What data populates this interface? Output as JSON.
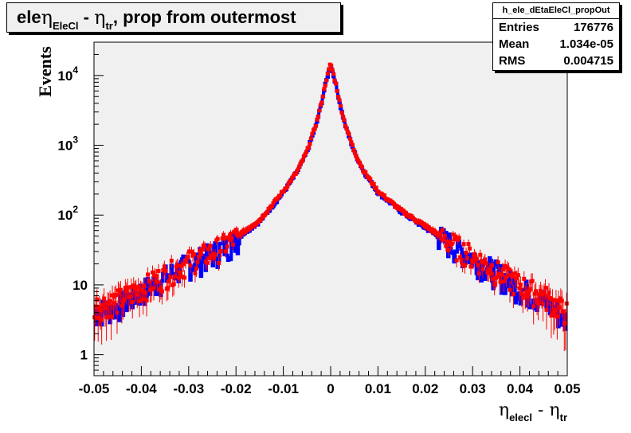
{
  "title": {
    "prefix": "ele ",
    "eta1": "η",
    "sub1": "EleCl",
    "mid": " - ",
    "eta2": "η",
    "sub2": "tr",
    "suffix": ", prop from outermost"
  },
  "stats": {
    "name": "h_ele_dEtaEleCl_propOut",
    "rows": [
      {
        "label": "Entries",
        "value": "176776"
      },
      {
        "label": "Mean",
        "value": "1.034e-05"
      },
      {
        "label": "RMS",
        "value": "0.004715"
      }
    ]
  },
  "colors": {
    "frame_fill": "#f0f0f0",
    "series_blue": "#0000ff",
    "series_red": "#ff0000"
  },
  "chart_data": {
    "type": "line",
    "title": "ele ηEleCl - ηtr, prop from outermost",
    "xlabel": {
      "main": "η",
      "sub1": "elecl",
      "mid": " - η",
      "sub2": "tr"
    },
    "ylabel": "Events",
    "xlim": [
      -0.05,
      0.05
    ],
    "ylim": [
      0.5,
      30000
    ],
    "y_scale": "log",
    "x_ticks": [
      -0.05,
      -0.04,
      -0.03,
      -0.02,
      -0.01,
      0,
      0.01,
      0.02,
      0.03,
      0.04,
      0.05
    ],
    "x_tick_labels": [
      "-0.05",
      "-0.04",
      "-0.03",
      "-0.02",
      "-0.01",
      "0",
      "0.01",
      "0.02",
      "0.03",
      "0.04",
      "0.05"
    ],
    "y_ticks": [
      1,
      10,
      100,
      1000,
      10000
    ],
    "y_tick_labels": [
      {
        "base": "1",
        "exp": ""
      },
      {
        "base": "10",
        "exp": ""
      },
      {
        "base": "10",
        "exp": "2"
      },
      {
        "base": "10",
        "exp": "3"
      },
      {
        "base": "10",
        "exp": "4"
      }
    ],
    "series": [
      {
        "color": "#0000ff",
        "style": "histogram",
        "x": [
          -0.05,
          -0.045,
          -0.04,
          -0.035,
          -0.03,
          -0.025,
          -0.02,
          -0.015,
          -0.01,
          -0.007,
          -0.005,
          -0.003,
          -0.002,
          -0.001,
          0,
          0.001,
          0.002,
          0.003,
          0.005,
          0.007,
          0.01,
          0.015,
          0.02,
          0.025,
          0.03,
          0.035,
          0.04,
          0.045,
          0.05
        ],
        "y": [
          4,
          5,
          8,
          13,
          20,
          28,
          45,
          80,
          210,
          420,
          800,
          2000,
          3800,
          8000,
          14000,
          8000,
          3800,
          2000,
          800,
          420,
          210,
          110,
          65,
          40,
          25,
          15,
          9,
          6,
          3
        ]
      },
      {
        "color": "#ff0000",
        "style": "markers",
        "x": [
          -0.05,
          -0.045,
          -0.04,
          -0.035,
          -0.03,
          -0.025,
          -0.02,
          -0.015,
          -0.01,
          -0.007,
          -0.005,
          -0.003,
          -0.002,
          -0.001,
          0,
          0.001,
          0.002,
          0.003,
          0.005,
          0.007,
          0.01,
          0.015,
          0.02,
          0.025,
          0.03,
          0.035,
          0.04,
          0.045,
          0.05
        ],
        "y": [
          5,
          6,
          9,
          14,
          22,
          30,
          48,
          85,
          220,
          430,
          820,
          2100,
          3900,
          8200,
          15000,
          8200,
          3900,
          2100,
          820,
          430,
          220,
          115,
          70,
          42,
          26,
          16,
          10,
          7,
          4
        ]
      }
    ]
  }
}
